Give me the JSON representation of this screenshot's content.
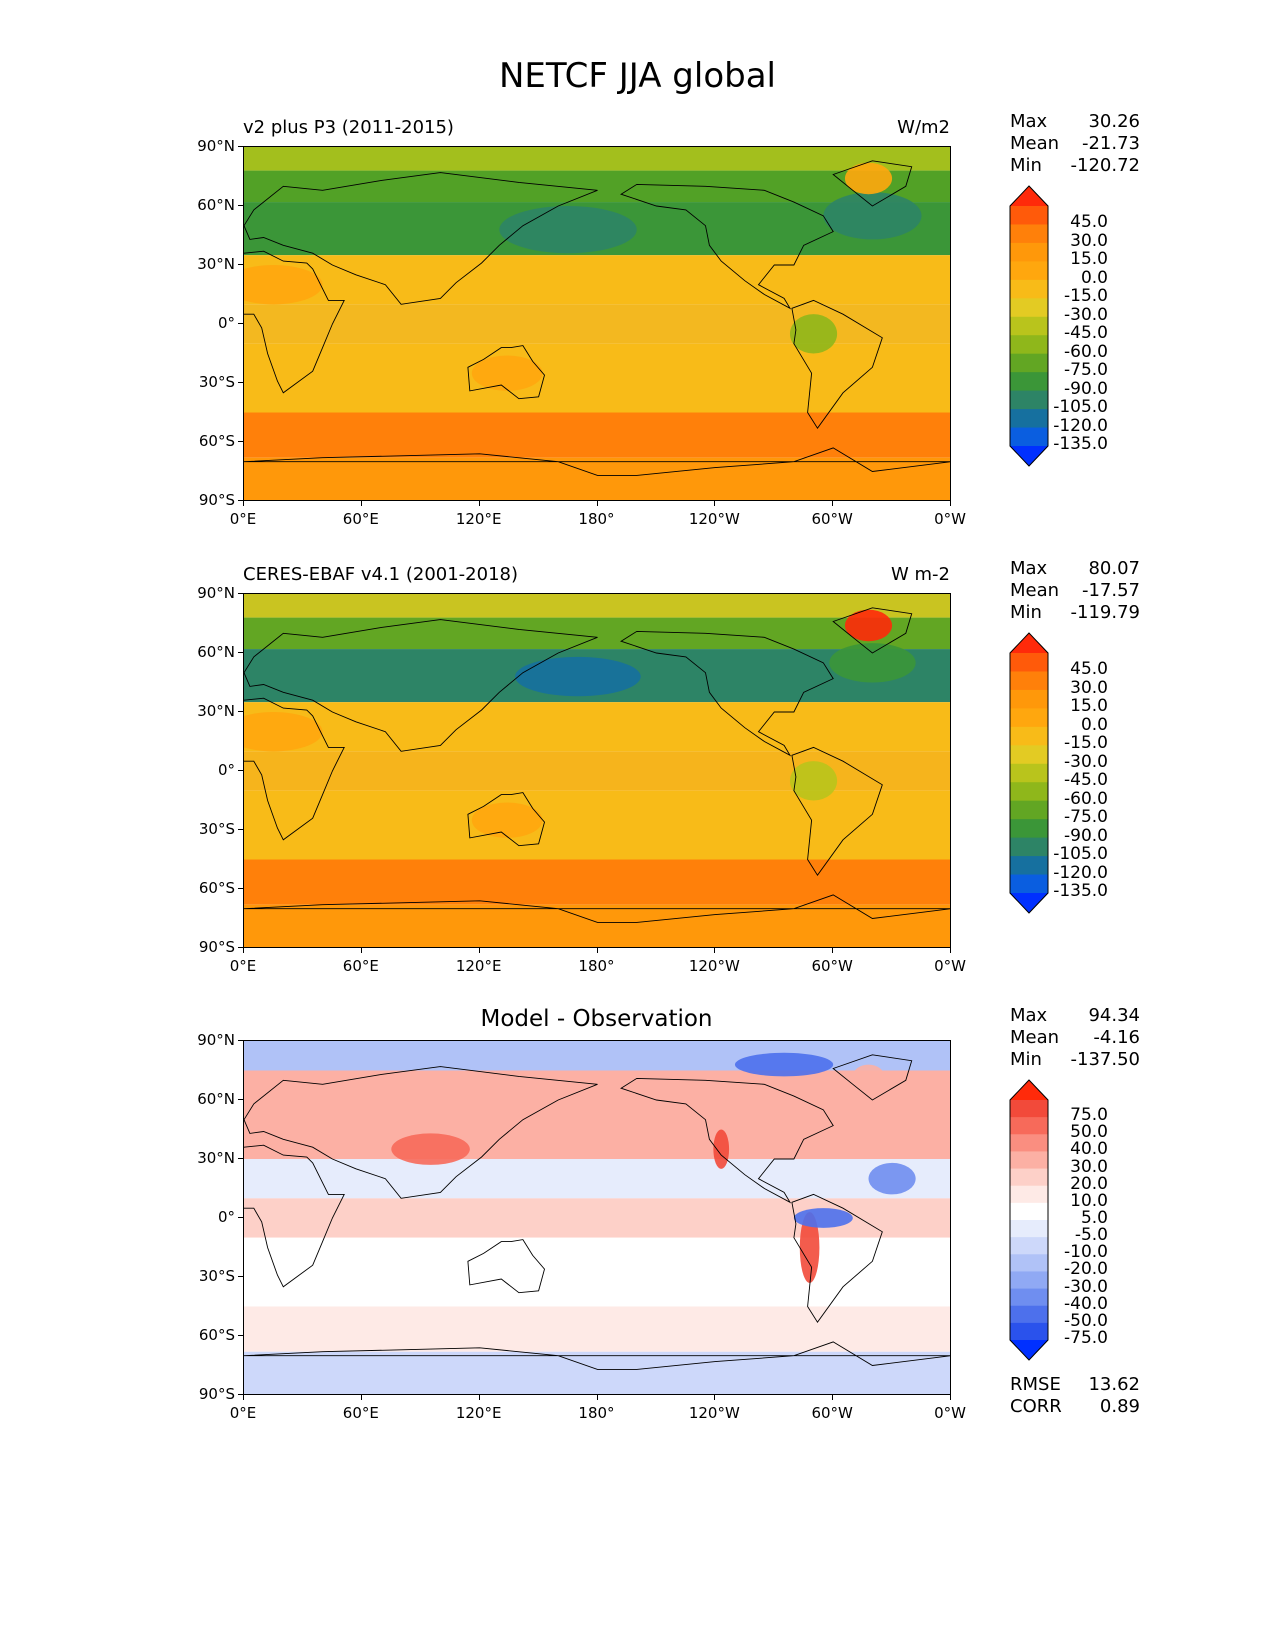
{
  "title": "NETCF JJA global",
  "panels": [
    {
      "id": "test",
      "left_title": "v2 plus P3 (2011-2015)",
      "right_title": "W/m2",
      "center_title": "",
      "stats": [
        {
          "key": "Max",
          "value": "30.26"
        },
        {
          "key": "Mean",
          "value": "-21.73"
        },
        {
          "key": "Min",
          "value": "-120.72"
        }
      ],
      "colorbar": {
        "labels": [
          "45.0",
          "30.0",
          "15.0",
          "0.0",
          "-15.0",
          "-30.0",
          "-45.0",
          "-60.0",
          "-75.0",
          "-90.0",
          "-105.0",
          "-120.0",
          "-135.0"
        ],
        "colors": [
          "#ff2a0a",
          "#ff5a0a",
          "#ff800a",
          "#ff980a",
          "#ffa70e",
          "#f8bb18",
          "#e3cb23",
          "#b9c41c",
          "#8fb71b",
          "#62a623",
          "#3b9638",
          "#2d8466",
          "#16709f",
          "#0a5ee0",
          "#0030ff"
        ]
      },
      "extra_stats": []
    },
    {
      "id": "ref",
      "left_title": "CERES-EBAF v4.1 (2001-2018)",
      "right_title": "W m-2",
      "center_title": "",
      "stats": [
        {
          "key": "Max",
          "value": "80.07"
        },
        {
          "key": "Mean",
          "value": "-17.57"
        },
        {
          "key": "Min",
          "value": "-119.79"
        }
      ],
      "colorbar": {
        "labels": [
          "45.0",
          "30.0",
          "15.0",
          "0.0",
          "-15.0",
          "-30.0",
          "-45.0",
          "-60.0",
          "-75.0",
          "-90.0",
          "-105.0",
          "-120.0",
          "-135.0"
        ],
        "colors": [
          "#ff2a0a",
          "#ff5a0a",
          "#ff800a",
          "#ff980a",
          "#ffa70e",
          "#f8bb18",
          "#e3cb23",
          "#b9c41c",
          "#8fb71b",
          "#62a623",
          "#3b9638",
          "#2d8466",
          "#16709f",
          "#0a5ee0",
          "#0030ff"
        ]
      },
      "extra_stats": []
    },
    {
      "id": "diff",
      "left_title": "",
      "right_title": "",
      "center_title": "Model - Observation",
      "stats": [
        {
          "key": "Max",
          "value": "94.34"
        },
        {
          "key": "Mean",
          "value": "-4.16"
        },
        {
          "key": "Min",
          "value": "-137.50"
        }
      ],
      "colorbar": {
        "labels": [
          "75.0",
          "50.0",
          "40.0",
          "30.0",
          "20.0",
          "10.0",
          "5.0",
          "-5.0",
          "-10.0",
          "-20.0",
          "-30.0",
          "-40.0",
          "-50.0",
          "-75.0"
        ],
        "colors": [
          "#ff2a0a",
          "#f24a3a",
          "#f76a5a",
          "#fa8e80",
          "#fcb0a4",
          "#fdd0c8",
          "#feeae6",
          "#ffffff",
          "#e6ecfc",
          "#cdd8fa",
          "#b0c2f7",
          "#90a9f4",
          "#6f8ef0",
          "#4d70ec",
          "#2a52ec",
          "#0030ff"
        ]
      },
      "extra_stats": [
        {
          "key": "RMSE",
          "value": "13.62"
        },
        {
          "key": "CORR",
          "value": "0.89"
        }
      ]
    }
  ],
  "axes": {
    "xticks": [
      "0°E",
      "60°E",
      "120°E",
      "180°",
      "120°W",
      "60°W",
      "0°W"
    ],
    "yticks": [
      "90°N",
      "60°N",
      "30°N",
      "0°",
      "30°S",
      "60°S",
      "90°S"
    ]
  },
  "map_layers": {
    "test": [
      {
        "name": "zonal-band",
        "lat": [
          90,
          78
        ],
        "color": "#a3bf1d"
      },
      {
        "name": "arctic-atlantic",
        "lat": [
          78,
          62
        ],
        "color": "#52a126"
      },
      {
        "name": "north-pacific-storm-track",
        "lat": [
          62,
          35
        ],
        "color": "#3b9638"
      },
      {
        "name": "northern-midlatitudes",
        "lat": [
          35,
          10
        ],
        "color": "#f8bb18"
      },
      {
        "name": "tropics",
        "lat": [
          10,
          -10
        ],
        "color": "#f3b820"
      },
      {
        "name": "southern-subtropics",
        "lat": [
          -10,
          -45
        ],
        "color": "#f8bb18"
      },
      {
        "name": "southern-ocean",
        "lat": [
          -45,
          -68
        ],
        "color": "#ff800a"
      },
      {
        "name": "antarctica",
        "lat": [
          -68,
          -90
        ],
        "color": "#ff980a"
      }
    ],
    "ref": [
      {
        "name": "zonal-band",
        "lat": [
          90,
          78
        ],
        "color": "#c9c421"
      },
      {
        "name": "arctic-atlantic",
        "lat": [
          78,
          62
        ],
        "color": "#62a623"
      },
      {
        "name": "north-pacific-storm-track",
        "lat": [
          62,
          35
        ],
        "color": "#2d8466"
      },
      {
        "name": "northern-midlatitudes",
        "lat": [
          35,
          10
        ],
        "color": "#f8bb18"
      },
      {
        "name": "tropics",
        "lat": [
          10,
          -10
        ],
        "color": "#f6b41c"
      },
      {
        "name": "southern-subtropics",
        "lat": [
          -10,
          -45
        ],
        "color": "#f8bb18"
      },
      {
        "name": "southern-ocean",
        "lat": [
          -45,
          -68
        ],
        "color": "#ff800a"
      },
      {
        "name": "antarctica",
        "lat": [
          -68,
          -90
        ],
        "color": "#ff980a"
      }
    ],
    "diff": [
      {
        "name": "arctic",
        "lat": [
          90,
          75
        ],
        "color": "#b0c2f7"
      },
      {
        "name": "northern-land",
        "lat": [
          75,
          30
        ],
        "color": "#fcb0a4"
      },
      {
        "name": "northern-subtropics",
        "lat": [
          30,
          10
        ],
        "color": "#e6ecfc"
      },
      {
        "name": "tropics",
        "lat": [
          10,
          -10
        ],
        "color": "#fdd0c8"
      },
      {
        "name": "southern-subtropics",
        "lat": [
          -10,
          -45
        ],
        "color": "#ffffff"
      },
      {
        "name": "southern-ocean",
        "lat": [
          -45,
          -68
        ],
        "color": "#feeae6"
      },
      {
        "name": "antarctica",
        "lat": [
          -68,
          -90
        ],
        "color": "#cdd8fa"
      }
    ]
  },
  "map_features": {
    "test": [
      {
        "name": "north-pacific-low",
        "lon": 165,
        "lat": 48,
        "rx": 35,
        "ry": 12,
        "color": "#2d8466"
      },
      {
        "name": "north-atlantic-low",
        "lon": 320,
        "lat": 55,
        "rx": 25,
        "ry": 12,
        "color": "#2d8466"
      },
      {
        "name": "sahara-high",
        "lon": 15,
        "lat": 20,
        "rx": 25,
        "ry": 10,
        "color": "#ffa70e"
      },
      {
        "name": "amazon-band",
        "lon": 290,
        "lat": -5,
        "rx": 12,
        "ry": 10,
        "color": "#8fb71b"
      },
      {
        "name": "greenland",
        "lon": 318,
        "lat": 74,
        "rx": 12,
        "ry": 8,
        "color": "#ffa70e"
      },
      {
        "name": "australia",
        "lon": 134,
        "lat": -25,
        "rx": 18,
        "ry": 9,
        "color": "#ffa70e"
      }
    ],
    "ref": [
      {
        "name": "north-pacific-low",
        "lon": 170,
        "lat": 48,
        "rx": 32,
        "ry": 10,
        "color": "#16709f"
      },
      {
        "name": "north-atlantic-low",
        "lon": 320,
        "lat": 55,
        "rx": 22,
        "ry": 10,
        "color": "#3b9638"
      },
      {
        "name": "sahara-high",
        "lon": 15,
        "lat": 20,
        "rx": 25,
        "ry": 10,
        "color": "#ffa70e"
      },
      {
        "name": "amazon-band",
        "lon": 290,
        "lat": -5,
        "rx": 12,
        "ry": 10,
        "color": "#b9c41c"
      },
      {
        "name": "greenland",
        "lon": 318,
        "lat": 74,
        "rx": 12,
        "ry": 8,
        "color": "#ff2a0a"
      },
      {
        "name": "australia",
        "lon": 134,
        "lat": -25,
        "rx": 18,
        "ry": 9,
        "color": "#ffa70e"
      }
    ],
    "diff": [
      {
        "name": "asia-positive",
        "lon": 95,
        "lat": 35,
        "rx": 20,
        "ry": 8,
        "color": "#f76a5a"
      },
      {
        "name": "andes-positive",
        "lon": 288,
        "lat": -15,
        "rx": 5,
        "ry": 18,
        "color": "#f24a3a"
      },
      {
        "name": "west-coast-positive",
        "lon": 243,
        "lat": 35,
        "rx": 4,
        "ry": 10,
        "color": "#f24a3a"
      },
      {
        "name": "amazon-negative",
        "lon": 295,
        "lat": 0,
        "rx": 15,
        "ry": 5,
        "color": "#4d70ec"
      },
      {
        "name": "arctic-negative",
        "lon": 275,
        "lat": 78,
        "rx": 25,
        "ry": 6,
        "color": "#4d70ec"
      },
      {
        "name": "atlantic-negative",
        "lon": 330,
        "lat": 20,
        "rx": 12,
        "ry": 8,
        "color": "#6f8ef0"
      },
      {
        "name": "greenland-positive",
        "lon": 318,
        "lat": 72,
        "rx": 8,
        "ry": 6,
        "color": "#fcb0a4"
      }
    ]
  },
  "coastlines": [
    {
      "name": "africa",
      "points": [
        [
          -17,
          21
        ],
        [
          -10,
          30
        ],
        [
          0,
          36
        ],
        [
          10,
          37
        ],
        [
          20,
          32
        ],
        [
          32,
          31
        ],
        [
          35,
          28
        ],
        [
          43,
          12
        ],
        [
          51,
          12
        ],
        [
          45,
          0
        ],
        [
          40,
          -12
        ],
        [
          35,
          -24
        ],
        [
          20,
          -35
        ],
        [
          17,
          -29
        ],
        [
          12,
          -15
        ],
        [
          9,
          -2
        ],
        [
          5,
          5
        ],
        [
          -8,
          5
        ],
        [
          -17,
          14
        ]
      ]
    },
    {
      "name": "eurasia",
      "points": [
        [
          0,
          50
        ],
        [
          5,
          58
        ],
        [
          20,
          70
        ],
        [
          40,
          68
        ],
        [
          70,
          73
        ],
        [
          100,
          77
        ],
        [
          140,
          72
        ],
        [
          180,
          68
        ],
        [
          160,
          60
        ],
        [
          142,
          50
        ],
        [
          130,
          40
        ],
        [
          121,
          31
        ],
        [
          108,
          21
        ],
        [
          100,
          13
        ],
        [
          80,
          10
        ],
        [
          72,
          20
        ],
        [
          57,
          25
        ],
        [
          45,
          30
        ],
        [
          35,
          36
        ],
        [
          20,
          40
        ],
        [
          10,
          44
        ],
        [
          3,
          43
        ]
      ]
    },
    {
      "name": "north-america",
      "points": [
        [
          192,
          66
        ],
        [
          200,
          71
        ],
        [
          235,
          70
        ],
        [
          265,
          68
        ],
        [
          280,
          62
        ],
        [
          295,
          55
        ],
        [
          300,
          47
        ],
        [
          285,
          40
        ],
        [
          280,
          30
        ],
        [
          270,
          30
        ],
        [
          262,
          20
        ],
        [
          275,
          13
        ],
        [
          278,
          8
        ],
        [
          265,
          15
        ],
        [
          255,
          22
        ],
        [
          243,
          32
        ],
        [
          237,
          40
        ],
        [
          235,
          50
        ],
        [
          225,
          58
        ],
        [
          210,
          60
        ]
      ]
    },
    {
      "name": "south-america",
      "points": [
        [
          279,
          8
        ],
        [
          290,
          12
        ],
        [
          305,
          5
        ],
        [
          325,
          -7
        ],
        [
          320,
          -22
        ],
        [
          305,
          -35
        ],
        [
          292,
          -53
        ],
        [
          287,
          -45
        ],
        [
          289,
          -25
        ],
        [
          280,
          -10
        ],
        [
          281,
          -3
        ]
      ]
    },
    {
      "name": "australia",
      "points": [
        [
          114,
          -22
        ],
        [
          122,
          -18
        ],
        [
          131,
          -12
        ],
        [
          136,
          -12
        ],
        [
          142,
          -11
        ],
        [
          147,
          -19
        ],
        [
          153,
          -26
        ],
        [
          150,
          -37
        ],
        [
          140,
          -38
        ],
        [
          131,
          -31
        ],
        [
          115,
          -34
        ]
      ]
    },
    {
      "name": "greenland",
      "points": [
        [
          300,
          76
        ],
        [
          320,
          83
        ],
        [
          340,
          80
        ],
        [
          337,
          70
        ],
        [
          320,
          60
        ],
        [
          310,
          68
        ]
      ]
    },
    {
      "name": "antarctica-edge",
      "points": [
        [
          0,
          -70
        ],
        [
          40,
          -68
        ],
        [
          80,
          -67
        ],
        [
          120,
          -66
        ],
        [
          160,
          -70
        ],
        [
          180,
          -77
        ],
        [
          200,
          -77
        ],
        [
          240,
          -73
        ],
        [
          280,
          -70
        ],
        [
          300,
          -63
        ],
        [
          320,
          -75
        ],
        [
          360,
          -70
        ]
      ]
    }
  ]
}
